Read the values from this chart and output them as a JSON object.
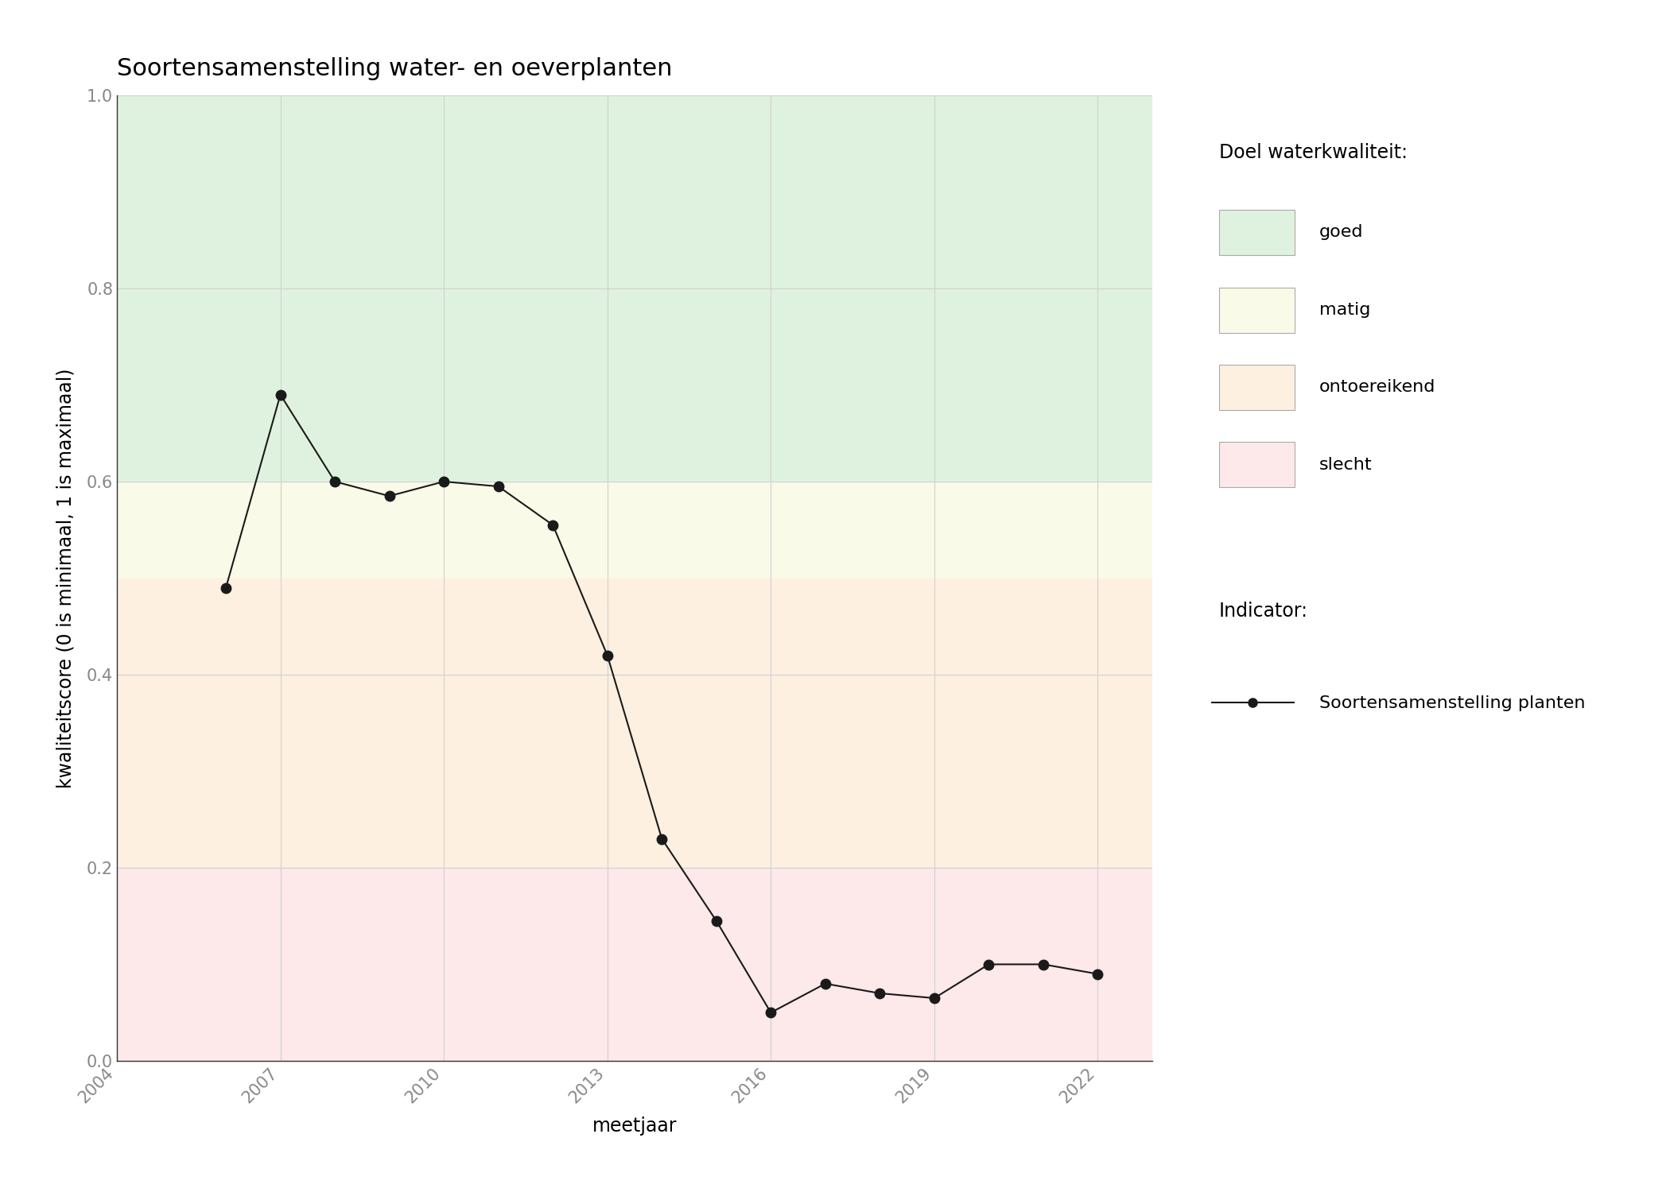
{
  "title": "Soortensamenstelling water- en oeverplanten",
  "xlabel": "meetjaar",
  "ylabel": "kwaliteitscore (0 is minimaal, 1 is maximaal)",
  "years": [
    2006,
    2007,
    2008,
    2009,
    2010,
    2011,
    2012,
    2013,
    2014,
    2015,
    2016,
    2017,
    2018,
    2019,
    2020,
    2021,
    2022
  ],
  "values": [
    0.49,
    0.69,
    0.6,
    0.585,
    0.6,
    0.595,
    0.555,
    0.42,
    0.23,
    0.145,
    0.05,
    0.08,
    0.07,
    0.065,
    0.1,
    0.1,
    0.09
  ],
  "xlim": [
    2004,
    2023
  ],
  "ylim": [
    0.0,
    1.0
  ],
  "xticks": [
    2004,
    2007,
    2010,
    2013,
    2016,
    2019,
    2022
  ],
  "yticks": [
    0.0,
    0.2,
    0.4,
    0.6,
    0.8,
    1.0
  ],
  "band_good": {
    "ymin": 0.6,
    "ymax": 1.0,
    "color": "#dff2df",
    "label": "goed"
  },
  "band_matig": {
    "ymin": 0.5,
    "ymax": 0.6,
    "color": "#fafae8",
    "label": "matig"
  },
  "band_ontoereikend": {
    "ymin": 0.2,
    "ymax": 0.5,
    "color": "#fdf0e0",
    "label": "ontoereikend"
  },
  "band_slecht": {
    "ymin": 0.0,
    "ymax": 0.2,
    "color": "#fde8ea",
    "label": "slecht"
  },
  "line_color": "#1a1a1a",
  "marker_color": "#1a1a1a",
  "marker_size": 9,
  "line_width": 1.5,
  "grid_color": "#d0d0d0",
  "background_color": "#ffffff",
  "title_fontsize": 22,
  "axis_label_fontsize": 17,
  "tick_fontsize": 15,
  "tick_color": "#888888",
  "legend_fontsize": 16,
  "legend_title_fontsize": 17,
  "legend_title_doel": "Doel waterkwaliteit:",
  "legend_title_indicator": "Indicator:",
  "indicator_label": "Soortensamenstelling planten"
}
